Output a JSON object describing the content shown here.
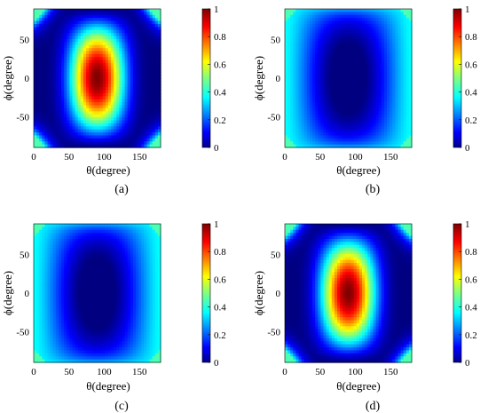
{
  "chart_data": [
    {
      "type": "heatmap",
      "panel_label": "(a)",
      "xlabel": "θ(degree)",
      "ylabel": "ϕ(degree)",
      "xlim": [
        0,
        180
      ],
      "ylim": [
        -90,
        90
      ],
      "x_ticks": [
        0,
        50,
        100,
        150
      ],
      "y_ticks": [
        -50,
        0,
        50
      ],
      "colorbar_range": [
        0,
        1
      ],
      "colorbar_ticks": [
        0,
        0.2,
        0.4,
        0.6,
        0.8,
        1
      ],
      "colormap": "jet",
      "pattern": "high vertical band centered at θ=90°",
      "center_value": 1.0,
      "edge_value": 0.0,
      "corner_value": 0.45
    },
    {
      "type": "heatmap",
      "panel_label": "(b)",
      "xlabel": "θ(degree)",
      "ylabel": "ϕ(degree)",
      "xlim": [
        0,
        180
      ],
      "ylim": [
        -90,
        90
      ],
      "x_ticks": [
        0,
        50,
        100,
        150
      ],
      "y_ticks": [
        -50,
        0,
        50
      ],
      "colorbar_range": [
        0,
        1
      ],
      "colorbar_ticks": [
        0,
        0.2,
        0.4,
        0.6,
        0.8,
        1
      ],
      "colormap": "jet",
      "pattern": "near zero in center, rising toward edges",
      "center_value": 0.0,
      "edge_value": 0.35,
      "corner_value": 0.45
    },
    {
      "type": "heatmap",
      "panel_label": "(c)",
      "xlabel": "θ(degree)",
      "ylabel": "ϕ(degree)",
      "xlim": [
        0,
        180
      ],
      "ylim": [
        -90,
        90
      ],
      "x_ticks": [
        0,
        50,
        100,
        150
      ],
      "y_ticks": [
        -50,
        0,
        50
      ],
      "colorbar_range": [
        0,
        1
      ],
      "colorbar_ticks": [
        0,
        0.2,
        0.4,
        0.6,
        0.8,
        1
      ],
      "colormap": "jet",
      "pattern": "near zero in center, rising toward edges",
      "center_value": 0.0,
      "edge_value": 0.35,
      "corner_value": 0.45
    },
    {
      "type": "heatmap",
      "panel_label": "(d)",
      "xlabel": "θ(degree)",
      "ylabel": "ϕ(degree)",
      "xlim": [
        0,
        180
      ],
      "ylim": [
        -90,
        90
      ],
      "x_ticks": [
        0,
        50,
        100,
        150
      ],
      "y_ticks": [
        -50,
        0,
        50
      ],
      "colorbar_range": [
        0,
        1
      ],
      "colorbar_ticks": [
        0,
        0.2,
        0.4,
        0.6,
        0.8,
        1
      ],
      "colormap": "jet",
      "pattern": "high vertical band centered at θ=90°",
      "center_value": 1.0,
      "edge_value": 0.0,
      "corner_value": 0.45
    }
  ]
}
